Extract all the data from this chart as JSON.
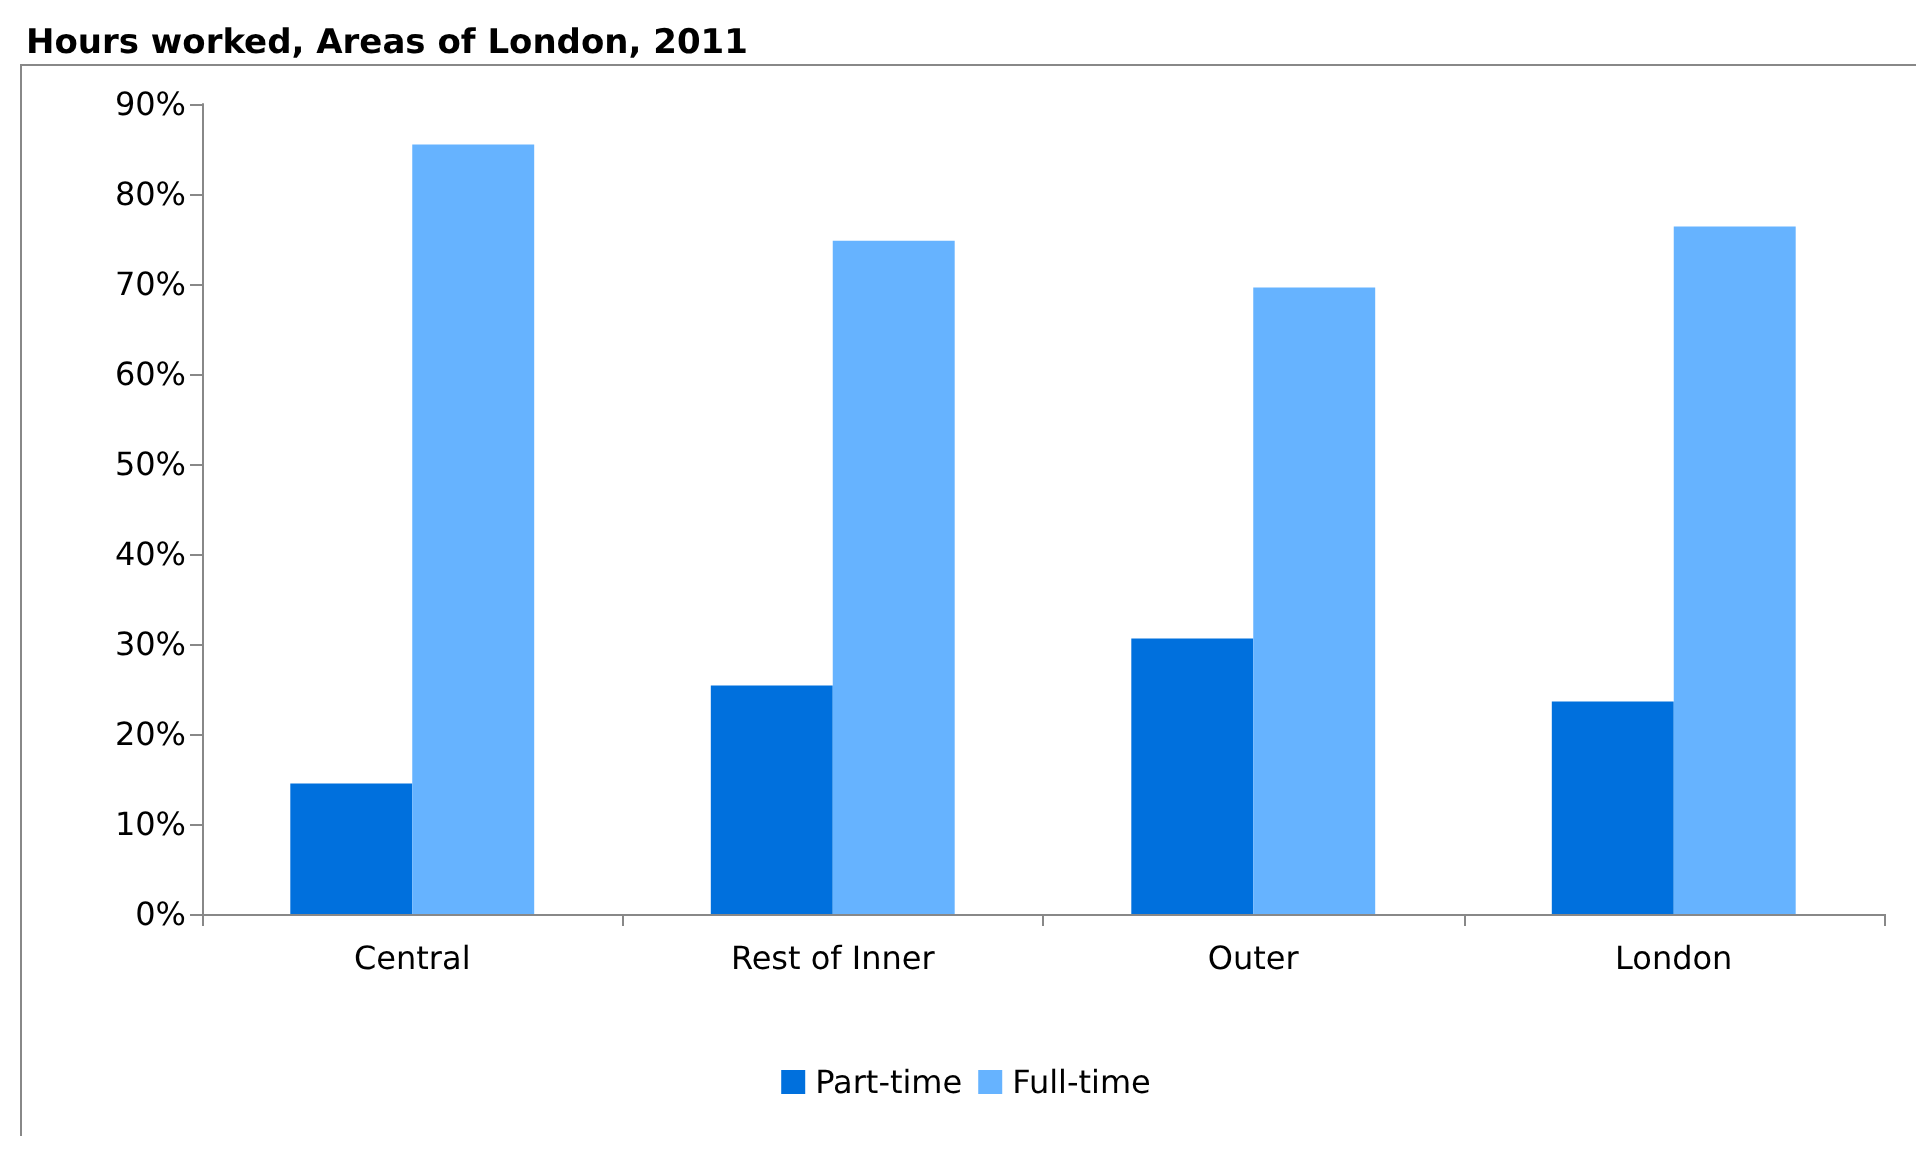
{
  "chart_data": {
    "type": "bar",
    "title": "Hours worked, Areas of London, 2011",
    "categories": [
      "Central",
      "Rest of Inner",
      "Outer",
      "London"
    ],
    "series": [
      {
        "name": "Part-time",
        "color": "#0070dd",
        "values": [
          14.5,
          25.4,
          30.6,
          23.6
        ]
      },
      {
        "name": "Full-time",
        "color": "#66b3ff",
        "values": [
          85.5,
          74.8,
          69.6,
          76.4
        ]
      }
    ],
    "ylim": [
      0,
      90
    ],
    "yticks": [
      {
        "value": 0,
        "label": "0%"
      },
      {
        "value": 10,
        "label": "10%"
      },
      {
        "value": 20,
        "label": "20%"
      },
      {
        "value": 30,
        "label": "30%"
      },
      {
        "value": 40,
        "label": "40%"
      },
      {
        "value": 50,
        "label": "50%"
      },
      {
        "value": 60,
        "label": "60%"
      },
      {
        "value": 70,
        "label": "70%"
      },
      {
        "value": 80,
        "label": "80%"
      },
      {
        "value": 90,
        "label": "90%"
      }
    ],
    "grid": false,
    "legend": "bottom"
  }
}
